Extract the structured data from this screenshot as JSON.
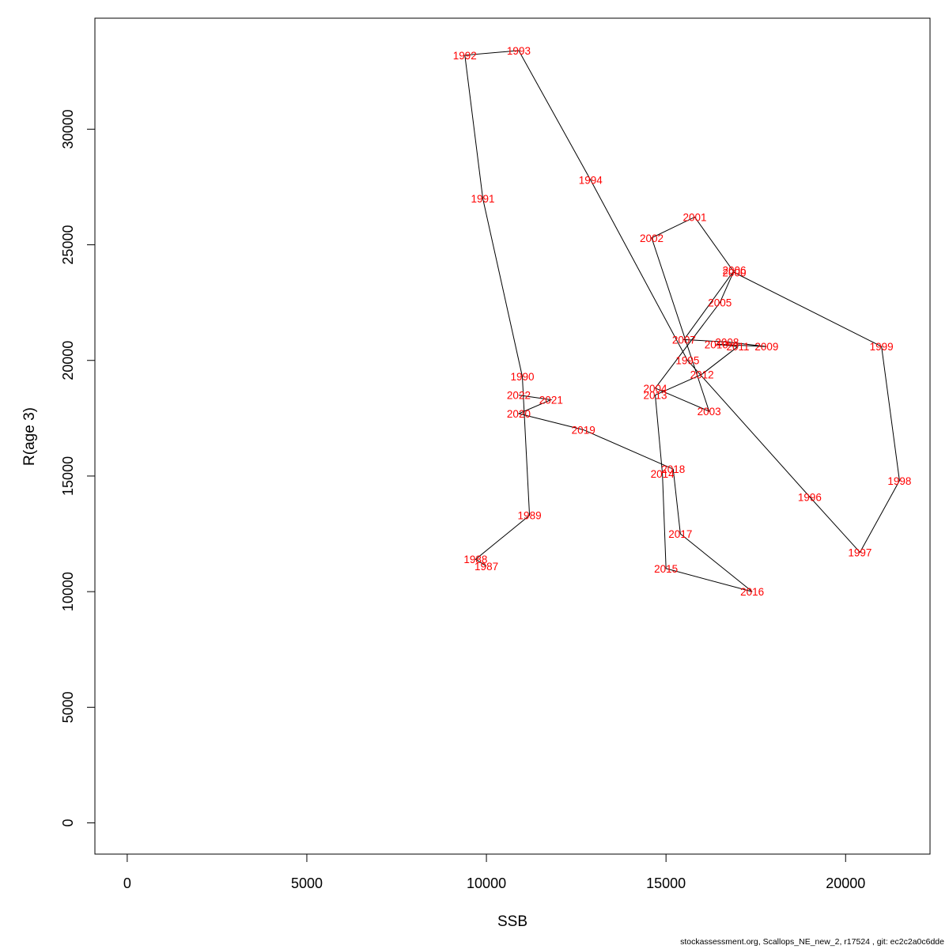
{
  "footer": "stockassessment.org, Scallops_NE_new_2, r17524 , git: ec2c2a0c6dde",
  "chart_data": {
    "type": "line",
    "xlabel": "SSB",
    "ylabel": "R(age 3)",
    "xlim": [
      -900,
      22350
    ],
    "ylim": [
      -1350,
      34800
    ],
    "x_ticks": [
      0,
      5000,
      10000,
      15000,
      20000
    ],
    "y_ticks": [
      0,
      5000,
      10000,
      15000,
      20000,
      25000,
      30000
    ],
    "grid": false,
    "line_color": "#000000",
    "label_color": "#ff0000",
    "series": [
      {
        "points": [
          {
            "label": "1987",
            "x": 10000,
            "y": 11100
          },
          {
            "label": "1988",
            "x": 9700,
            "y": 11400
          },
          {
            "label": "1989",
            "x": 11200,
            "y": 13300
          },
          {
            "label": "1990",
            "x": 11000,
            "y": 19300
          },
          {
            "label": "1991",
            "x": 9900,
            "y": 27000
          },
          {
            "label": "1992",
            "x": 9400,
            "y": 33200
          },
          {
            "label": "1993",
            "x": 10900,
            "y": 33400
          },
          {
            "label": "1994",
            "x": 12900,
            "y": 27800
          },
          {
            "label": "1995",
            "x": 15600,
            "y": 20000
          },
          {
            "label": "1996",
            "x": 19000,
            "y": 14100
          },
          {
            "label": "1997",
            "x": 20400,
            "y": 11700
          },
          {
            "label": "1998",
            "x": 21500,
            "y": 14800
          },
          {
            "label": "1999",
            "x": 21000,
            "y": 20600
          },
          {
            "label": "2000",
            "x": 16900,
            "y": 23800
          },
          {
            "label": "2001",
            "x": 15800,
            "y": 26200
          },
          {
            "label": "2002",
            "x": 14600,
            "y": 25300
          },
          {
            "label": "2003",
            "x": 16200,
            "y": 17800
          },
          {
            "label": "2004",
            "x": 14700,
            "y": 18800
          },
          {
            "label": "2005",
            "x": 16500,
            "y": 22500
          },
          {
            "label": "2006",
            "x": 16900,
            "y": 23900
          },
          {
            "label": "2007",
            "x": 15500,
            "y": 20900
          },
          {
            "label": "2008",
            "x": 16700,
            "y": 20800
          },
          {
            "label": "2009",
            "x": 17800,
            "y": 20600
          },
          {
            "label": "2010",
            "x": 16400,
            "y": 20700
          },
          {
            "label": "2011",
            "x": 17000,
            "y": 20600
          },
          {
            "label": "2012",
            "x": 16000,
            "y": 19400
          },
          {
            "label": "2013",
            "x": 14700,
            "y": 18500
          },
          {
            "label": "2014",
            "x": 14900,
            "y": 15100
          },
          {
            "label": "2015",
            "x": 15000,
            "y": 11000
          },
          {
            "label": "2016",
            "x": 17400,
            "y": 10000
          },
          {
            "label": "2017",
            "x": 15400,
            "y": 12500
          },
          {
            "label": "2018",
            "x": 15200,
            "y": 15300
          },
          {
            "label": "2019",
            "x": 12700,
            "y": 17000
          },
          {
            "label": "2020",
            "x": 10900,
            "y": 17700
          },
          {
            "label": "2021",
            "x": 11800,
            "y": 18300
          },
          {
            "label": "2022",
            "x": 10900,
            "y": 18500
          }
        ]
      }
    ]
  }
}
